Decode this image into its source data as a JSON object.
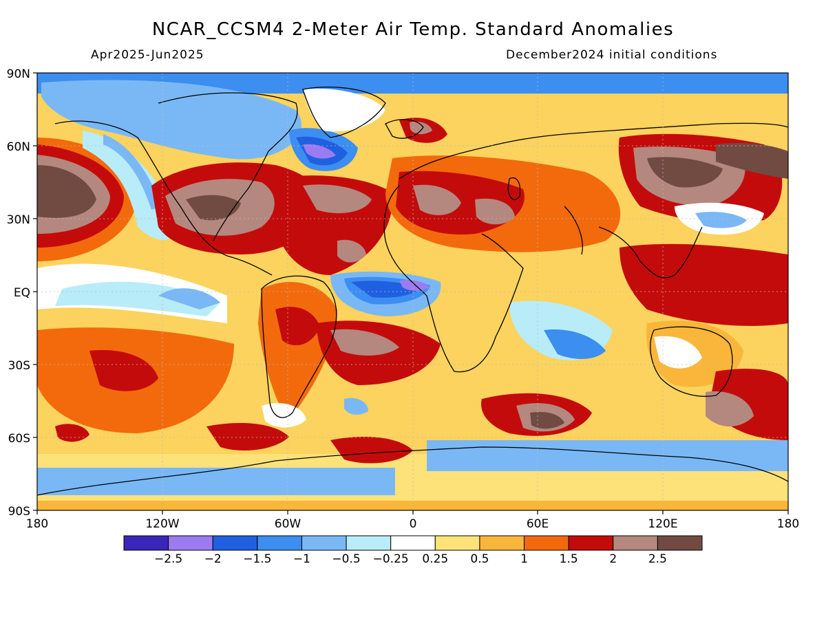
{
  "header": {
    "title": "NCAR_CCSM4 2-Meter Air Temp. Standard Anomalies",
    "period": "Apr2025-Jun2025",
    "init": "December2024 initial conditions"
  },
  "axes": {
    "lat_labels": [
      "90N",
      "60N",
      "30N",
      "EQ",
      "30S",
      "60S",
      "90S"
    ],
    "lon_labels": [
      "180",
      "120W",
      "60W",
      "0",
      "60E",
      "120E",
      "180"
    ]
  },
  "legend": {
    "labels": [
      "-2.5",
      "-2",
      "-1.5",
      "-1",
      "-0.5",
      "-0.25",
      "0.25",
      "0.5",
      "1",
      "1.5",
      "2",
      "2.5"
    ],
    "colors": [
      "#3a26b8",
      "#9b7cf0",
      "#1f60e0",
      "#3c8ef0",
      "#7ab8f5",
      "#b8ecf8",
      "#ffffff",
      "#fde27a",
      "#f9b63a",
      "#f26a0c",
      "#c40b0b",
      "#b4887f",
      "#714b42"
    ]
  },
  "map": {
    "background_color": "#fbd35e",
    "coastline_color": "#000000"
  }
}
